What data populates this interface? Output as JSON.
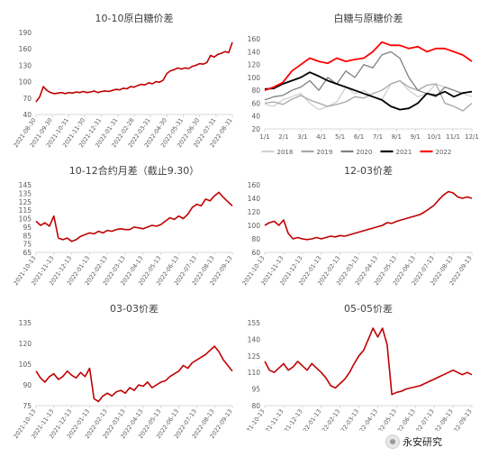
{
  "colors": {
    "line": "#c00000",
    "axis": "#d9d9d9",
    "text": "#595959"
  },
  "watermark": "永安研究",
  "chart_data": [
    {
      "type": "line",
      "title": "10-10原白糖价差",
      "ylim": [
        40,
        190
      ],
      "yticks": [
        40,
        70,
        100,
        130,
        160,
        190
      ],
      "xticks": [
        "2021-08-30",
        "2021-09-30",
        "2021-10-31",
        "2021-11-30",
        "2021-12-31",
        "2022-01-31",
        "2022-02-28",
        "2022-03-31",
        "2022-04-30",
        "2022-05-31",
        "2022-06-30",
        "2022-07-31",
        "2022-08-31"
      ],
      "series": [
        {
          "values": [
            63,
            72,
            91,
            84,
            80,
            78,
            79,
            80,
            78,
            80,
            79,
            81,
            80,
            82,
            80,
            81,
            83,
            80,
            82,
            83,
            82,
            84,
            86,
            85,
            88,
            87,
            91,
            90,
            93,
            95,
            94,
            98,
            96,
            100,
            99,
            103,
            115,
            120,
            122,
            125,
            123,
            125,
            124,
            128,
            130,
            133,
            132,
            135,
            148,
            145,
            150,
            152,
            155,
            153,
            172
          ]
        }
      ]
    },
    {
      "type": "line",
      "title": "白糖与原糖价差",
      "ylim": [
        20,
        170
      ],
      "yticks": [
        20,
        40,
        60,
        80,
        100,
        120,
        140,
        160
      ],
      "xticks": [
        "1/1",
        "2/1",
        "3/1",
        "4/1",
        "5/1",
        "6/1",
        "7/1",
        "8/1",
        "9/1",
        "10/1",
        "11/1",
        "12/1"
      ],
      "series": [
        {
          "name": "2018",
          "color": "#d0d0d0",
          "values": [
            58,
            55,
            65,
            70,
            75,
            60,
            50,
            55,
            62,
            85,
            75,
            80,
            70,
            65,
            90,
            95,
            80,
            70,
            75,
            90,
            85,
            80,
            75,
            70
          ]
        },
        {
          "name": "2019",
          "color": "#a6a6a6",
          "values": [
            60,
            62,
            58,
            66,
            72,
            65,
            60,
            55,
            58,
            62,
            70,
            68,
            75,
            80,
            90,
            95,
            85,
            80,
            88,
            90,
            60,
            55,
            48,
            60
          ]
        },
        {
          "name": "2020",
          "color": "#7f7f7f",
          "values": [
            65,
            70,
            72,
            80,
            85,
            95,
            80,
            100,
            90,
            110,
            100,
            120,
            115,
            135,
            140,
            130,
            100,
            80,
            75,
            70,
            85,
            80,
            75,
            78
          ]
        },
        {
          "name": "2021",
          "color": "#000000",
          "values": [
            82,
            83,
            90,
            95,
            100,
            108,
            102,
            95,
            90,
            85,
            80,
            75,
            70,
            65,
            55,
            50,
            52,
            60,
            75,
            72,
            78,
            70,
            76,
            78
          ]
        },
        {
          "name": "2022",
          "color": "#ff0000",
          "values": [
            80,
            85,
            92,
            110,
            120,
            130,
            125,
            122,
            130,
            125,
            128,
            130,
            140,
            155,
            150,
            150,
            145,
            148,
            140,
            145,
            145,
            140,
            135,
            125
          ]
        }
      ],
      "legend": "bottom"
    },
    {
      "type": "line",
      "title": "10-12合约月差（截止9.30）",
      "ylim": [
        65,
        145
      ],
      "yticks": [
        65,
        75,
        85,
        95,
        105,
        115,
        125,
        135,
        145
      ],
      "xticks": [
        "2021-10-13",
        "2021-11-13",
        "2021-12-13",
        "2022-01-13",
        "2022-02-13",
        "2022-03-13",
        "2022-04-13",
        "2022-05-13",
        "2022-06-13",
        "2022-07-13",
        "2022-08-13",
        "2022-09-13"
      ],
      "series": [
        {
          "values": [
            102,
            97,
            100,
            96,
            108,
            82,
            80,
            82,
            78,
            80,
            84,
            86,
            88,
            87,
            90,
            88,
            91,
            90,
            92,
            93,
            92,
            92,
            95,
            94,
            93,
            95,
            97,
            96,
            98,
            102,
            106,
            104,
            108,
            105,
            110,
            118,
            122,
            120,
            128,
            126,
            132,
            136,
            130,
            125,
            120
          ]
        }
      ]
    },
    {
      "type": "line",
      "title": "12-03价差",
      "ylim": [
        60,
        160
      ],
      "yticks": [
        60,
        80,
        100,
        120,
        140,
        160
      ],
      "xticks": [
        "2021-10-13",
        "2021-11-13",
        "2021-12-13",
        "2022-01-13",
        "2022-02-13",
        "2022-03-13",
        "2022-04-13",
        "2022-05-13",
        "2022-06-13",
        "2022-07-13",
        "2022-08-13",
        "2022-09-13"
      ],
      "series": [
        {
          "values": [
            100,
            104,
            106,
            100,
            108,
            88,
            80,
            82,
            80,
            79,
            80,
            82,
            80,
            82,
            84,
            83,
            85,
            84,
            86,
            88,
            90,
            92,
            94,
            96,
            98,
            100,
            104,
            103,
            106,
            108,
            110,
            112,
            114,
            116,
            120,
            125,
            130,
            138,
            145,
            150,
            148,
            142,
            140,
            142,
            140
          ]
        }
      ]
    },
    {
      "type": "line",
      "title": "03-03价差",
      "ylim": [
        75,
        135
      ],
      "yticks": [
        75,
        90,
        105,
        120,
        135
      ],
      "xticks": [
        "2021-10-13",
        "2021-11-13",
        "2021-12-13",
        "2022-01-13",
        "2022-02-13",
        "2022-03-13",
        "2022-04-13",
        "2022-05-13",
        "2022-06-13",
        "2022-07-13",
        "2022-08-13",
        "2022-09-13"
      ],
      "series": [
        {
          "values": [
            100,
            95,
            92,
            96,
            98,
            94,
            96,
            100,
            97,
            95,
            99,
            96,
            102,
            80,
            78,
            82,
            84,
            82,
            85,
            86,
            84,
            88,
            86,
            90,
            89,
            92,
            88,
            90,
            92,
            93,
            96,
            98,
            100,
            104,
            102,
            106,
            108,
            110,
            112,
            115,
            118,
            114,
            108,
            104,
            100
          ]
        }
      ]
    },
    {
      "type": "line",
      "title": "05-05价差",
      "ylim": [
        80,
        155
      ],
      "yticks": [
        80,
        95,
        110,
        125,
        140,
        155
      ],
      "xticks": [
        "2021-10-13",
        "2021-11-13",
        "2021-12-13",
        "2022-01-13",
        "2022-02-13",
        "2022-03-13",
        "2022-04-13",
        "2022-05-13",
        "2022-06-13",
        "2022-07-13",
        "2022-08-13",
        "2022-09-13"
      ],
      "series": [
        {
          "values": [
            120,
            112,
            110,
            114,
            118,
            112,
            115,
            120,
            116,
            112,
            118,
            114,
            110,
            105,
            98,
            96,
            100,
            104,
            110,
            118,
            125,
            130,
            140,
            150,
            142,
            150,
            135,
            90,
            92,
            93,
            95,
            96,
            97,
            98,
            100,
            102,
            104,
            106,
            108,
            110,
            112,
            110,
            108,
            110,
            108
          ]
        }
      ]
    }
  ]
}
